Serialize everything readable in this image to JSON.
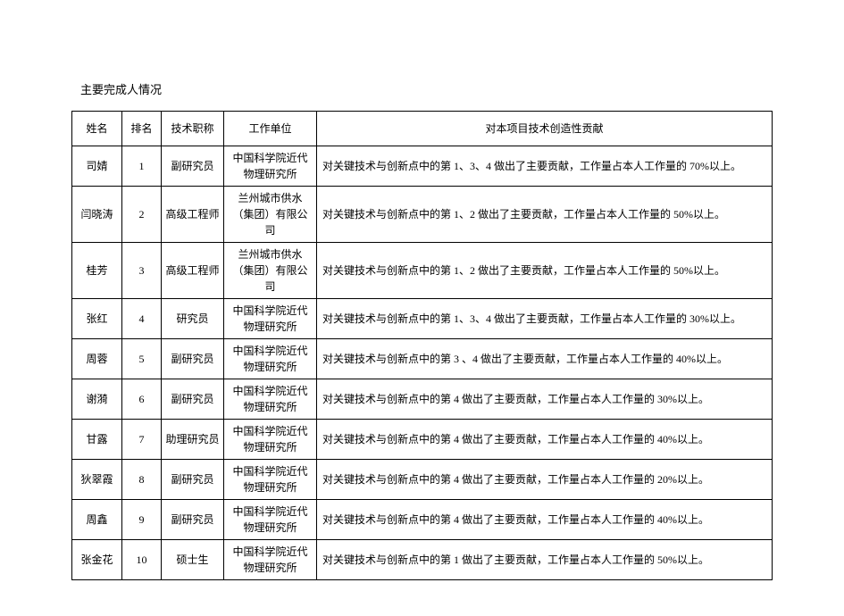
{
  "title": "主要完成人情况",
  "table": {
    "columns": [
      "姓名",
      "排名",
      "技术职称",
      "工作单位",
      "对本项目技术创造性贡献"
    ],
    "rows": [
      {
        "name": "司婧",
        "rank": "1",
        "title": "副研究员",
        "unit": "中国科学院近代物理研究所",
        "contrib": "对关键技术与创新点中的第 1、3、4 做出了主要贡献，工作量占本人工作量的 70%以上。"
      },
      {
        "name": "闫晓涛",
        "rank": "2",
        "title": "高级工程师",
        "unit": "兰州城市供水（集团）有限公司",
        "contrib": "对关键技术与创新点中的第 1、2 做出了主要贡献，工作量占本人工作量的 50%以上。"
      },
      {
        "name": "桂芳",
        "rank": "3",
        "title": "高级工程师",
        "unit": "兰州城市供水（集团）有限公司",
        "contrib": "对关键技术与创新点中的第 1、2 做出了主要贡献，工作量占本人工作量的 50%以上。"
      },
      {
        "name": "张红",
        "rank": "4",
        "title": "研究员",
        "unit": "中国科学院近代物理研究所",
        "contrib": "对关键技术与创新点中的第 1、3、4 做出了主要贡献，工作量占本人工作量的 30%以上。"
      },
      {
        "name": "周蓉",
        "rank": "5",
        "title": "副研究员",
        "unit": "中国科学院近代物理研究所",
        "contrib": "对关键技术与创新点中的第 3 、4 做出了主要贡献，工作量占本人工作量的 40%以上。"
      },
      {
        "name": "谢漪",
        "rank": "6",
        "title": "副研究员",
        "unit": "中国科学院近代物理研究所",
        "contrib": "对关键技术与创新点中的第 4 做出了主要贡献，工作量占本人工作量的 30%以上。"
      },
      {
        "name": "甘露",
        "rank": "7",
        "title": "助理研究员",
        "unit": "中国科学院近代物理研究所",
        "contrib": "对关键技术与创新点中的第 4 做出了主要贡献，工作量占本人工作量的 40%以上。"
      },
      {
        "name": "狄翠霞",
        "rank": "8",
        "title": "副研究员",
        "unit": "中国科学院近代物理研究所",
        "contrib": "对关键技术与创新点中的第 4 做出了主要贡献，工作量占本人工作量的 20%以上。"
      },
      {
        "name": "周鑫",
        "rank": "9",
        "title": "副研究员",
        "unit": "中国科学院近代物理研究所",
        "contrib": "对关键技术与创新点中的第 4 做出了主要贡献，工作量占本人工作量的 40%以上。"
      },
      {
        "name": "张金花",
        "rank": "10",
        "title": "硕士生",
        "unit": "中国科学院近代物理研究所",
        "contrib": "对关键技术与创新点中的第 1 做出了主要贡献，工作量占本人工作量的 50%以上。"
      }
    ]
  }
}
